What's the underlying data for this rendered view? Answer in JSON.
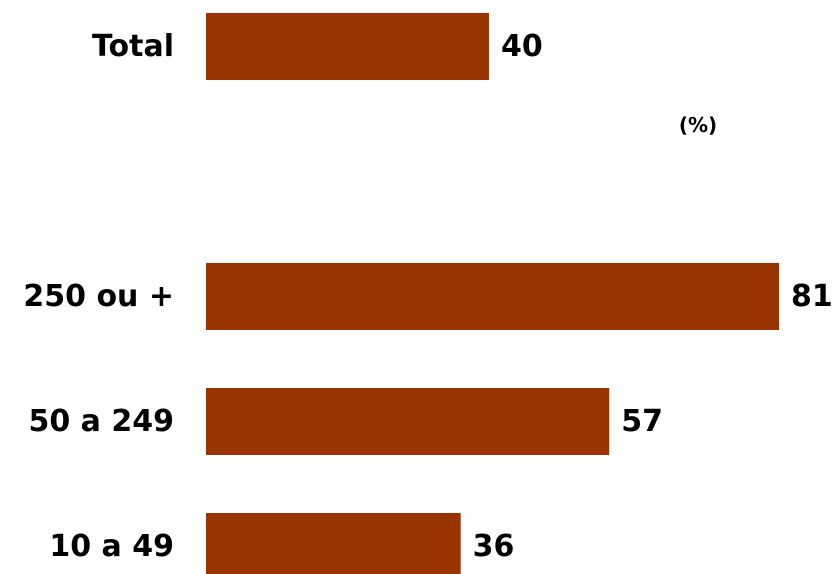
{
  "chart_data": {
    "type": "bar",
    "orientation": "horizontal",
    "unit": "(%)",
    "bar_color": "#993300",
    "categories": [
      "Total",
      "250 ou +",
      "50 a 249",
      "10 a 49"
    ],
    "values": [
      40,
      81,
      57,
      36
    ],
    "xlim": [
      0,
      81
    ],
    "grid": false,
    "legend": "none"
  }
}
